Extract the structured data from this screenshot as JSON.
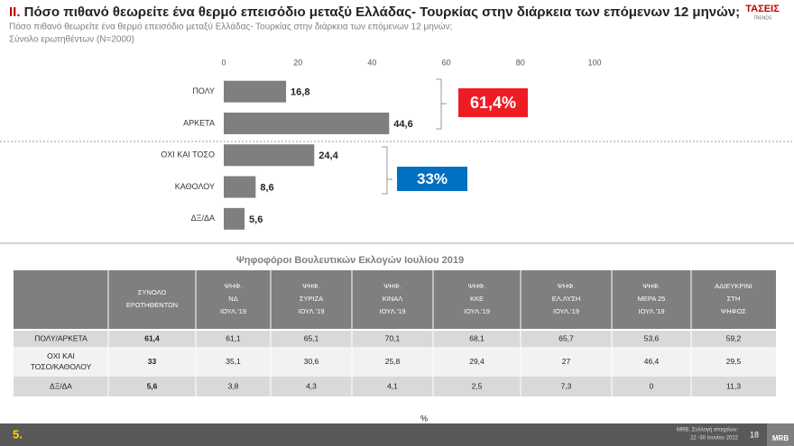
{
  "header": {
    "title_prefix": "ΙΙ.",
    "title": "Πόσο πιθανό θεωρείτε ένα θερμό επεισόδιο μεταξύ Ελλάδας- Τουρκίας στην διάρκεια των επόμενων 12 μηνών;",
    "subtitle": [
      "Πόσο πιθανό θεωρείτε ένα θερμό επεισόδιο μεταξύ Ελλάδας- Τουρκίας στην διάρκεια των επόμενων 12 μηνών;",
      "Σύνολο ερωτηθέντων (Ν=2000)"
    ],
    "logo": [
      "ΤΑΣΕΙΣ",
      "TRENDS"
    ]
  },
  "chart_data": {
    "type": "bar",
    "orientation": "horizontal",
    "categories": [
      "ΠΟΛΥ",
      "ΑΡΚΕΤΑ",
      "ΟΧΙ ΚΑΙ ΤΟΣΟ",
      "ΚΑΘΟΛΟΥ",
      "ΔΞ/ΔΑ"
    ],
    "values": [
      16.8,
      44.6,
      24.4,
      8.6,
      5.6
    ],
    "value_labels": [
      "16,8",
      "44,6",
      "24,4",
      "8,6",
      "5,6"
    ],
    "color": "#7f7f7f",
    "xlim": [
      0,
      100
    ],
    "xticks": [
      0,
      20,
      40,
      60,
      80,
      100
    ],
    "annotations": [
      {
        "text": "61,4%",
        "color": "#ee1c25"
      },
      {
        "text": "33%",
        "color": "#0070c0"
      }
    ]
  },
  "table": {
    "caption": "Ψηφοφόροι Βουλευτικών Εκλογών Ιουλίου 2019",
    "headers": [
      [
        "ΣΥΝΟΛΟ",
        "ΕΡΩΤΗΘΕΝΤΩΝ"
      ],
      [
        "ΨΗΦ.",
        "ΝΔ",
        "ΙΟΥΛ.'19"
      ],
      [
        "ΨΗΦ.",
        "ΣΥΡΙΖΑ",
        "ΙΟΥΛ.'19"
      ],
      [
        "ΨΗΦ.",
        "ΚΙΝΑΛ",
        "ΙΟΥΛ.'19"
      ],
      [
        "ΨΗΦ.",
        "ΚΚΕ",
        "ΙΟΥΛ.'19"
      ],
      [
        "ΨΗΦ.",
        "ΕΛ.ΛΥΣΗ",
        "ΙΟΥΛ.'19"
      ],
      [
        "ΨΗΦ.",
        "ΜΕΡΑ 25",
        "ΙΟΥΛ.'19"
      ],
      [
        "ΑΔΙΕΥΚΡΙΝΙ",
        "ΣΤΗ",
        "ΨΗΦΟΣ"
      ]
    ],
    "rows": [
      {
        "label": [
          "ΠΟΛΥ/ΑΡΚΕΤΑ"
        ],
        "cells": [
          "61,4",
          "61,1",
          "65,1",
          "70,1",
          "68,1",
          "65,7",
          "53,6",
          "59,2"
        ]
      },
      {
        "label": [
          "ΟΧΙ ΚΑΙ",
          "ΤΟΣΟ/ΚΑΘΟΛΟΥ"
        ],
        "cells": [
          "33",
          "35,1",
          "30,6",
          "25,8",
          "29,4",
          "27",
          "46,4",
          "29,5"
        ]
      },
      {
        "label": [
          "ΔΞ/ΔΑ"
        ],
        "cells": [
          "5,6",
          "3,8",
          "4,3",
          "4,1",
          "2,5",
          "7,3",
          "0",
          "11,3"
        ]
      }
    ],
    "unit": "%"
  },
  "footer": {
    "page_label": "5.",
    "source": [
      "MRB, Συλλογή στοιχείων:",
      "22 -30 Ιουνίου 2022"
    ],
    "page_number": "18",
    "brand": "MRB"
  }
}
